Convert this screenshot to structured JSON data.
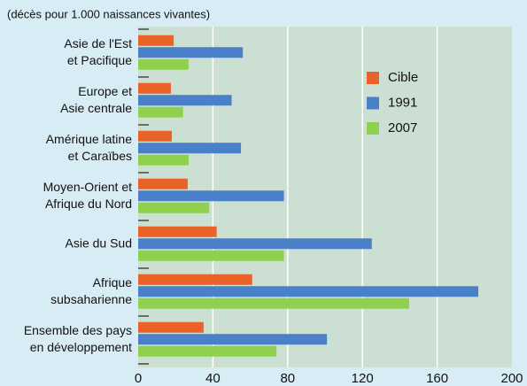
{
  "chart_data": {
    "type": "hbar",
    "subtitle": "(décès pour 1.000 naissances vivantes)",
    "categories": [
      [
        "Asie de l'Est",
        "et Pacifique"
      ],
      [
        "Europe et",
        "Asie centrale"
      ],
      [
        "Amérique latine",
        "et Caraïbes"
      ],
      [
        "Moyen-Orient et",
        "Afrique du Nord"
      ],
      [
        "Asie du Sud"
      ],
      [
        "Afrique",
        "subsaharienne"
      ],
      [
        "Ensemble des pays",
        "en développement"
      ]
    ],
    "series": [
      {
        "name": "Cible",
        "color": "#e8622a",
        "values": [
          19,
          17.5,
          18,
          26.5,
          42,
          61,
          35
        ]
      },
      {
        "name": "1991",
        "color": "#4a80c8",
        "values": [
          56,
          50,
          55,
          78,
          125,
          182,
          101
        ]
      },
      {
        "name": "2007",
        "color": "#8fd14f",
        "values": [
          27,
          24,
          27,
          38,
          78,
          145,
          74
        ]
      }
    ],
    "xlim": [
      0,
      200
    ],
    "xticks": [
      0,
      40,
      80,
      120,
      160,
      200
    ],
    "grid": true
  }
}
